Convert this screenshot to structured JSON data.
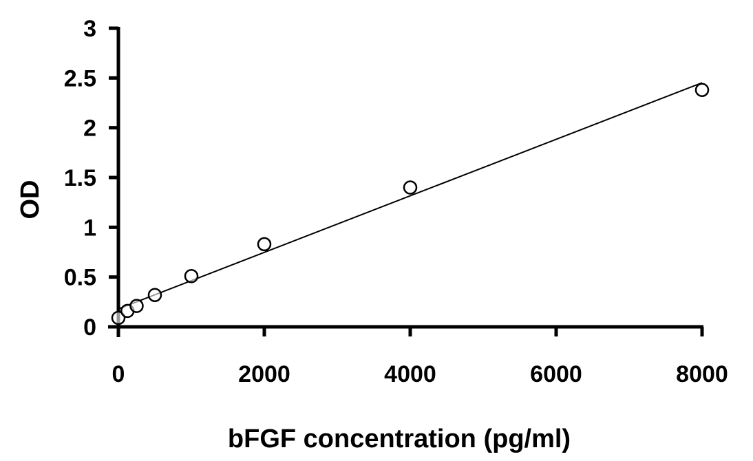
{
  "chart_data": {
    "type": "scatter",
    "title": "",
    "xlabel": "bFGF concentration (pg/ml)",
    "ylabel": "OD",
    "xlim": [
      0,
      8000
    ],
    "ylim": [
      0,
      3
    ],
    "x_ticks": [
      "0",
      "2000",
      "4000",
      "6000",
      "8000"
    ],
    "y_ticks": [
      "0",
      "0.5",
      "1",
      "1.5",
      "2",
      "2.5",
      "3"
    ],
    "grid": false,
    "legend": "none",
    "points": [
      {
        "x": 0,
        "y": 0.09
      },
      {
        "x": 125,
        "y": 0.16
      },
      {
        "x": 250,
        "y": 0.21
      },
      {
        "x": 500,
        "y": 0.32
      },
      {
        "x": 1000,
        "y": 0.51
      },
      {
        "x": 2000,
        "y": 0.83
      },
      {
        "x": 4000,
        "y": 1.4
      },
      {
        "x": 8000,
        "y": 2.38
      }
    ],
    "trendline": {
      "type": "linear",
      "intercept": 0.18,
      "slope": 0.000284
    },
    "marker": "open-circle",
    "color": "#000000"
  }
}
